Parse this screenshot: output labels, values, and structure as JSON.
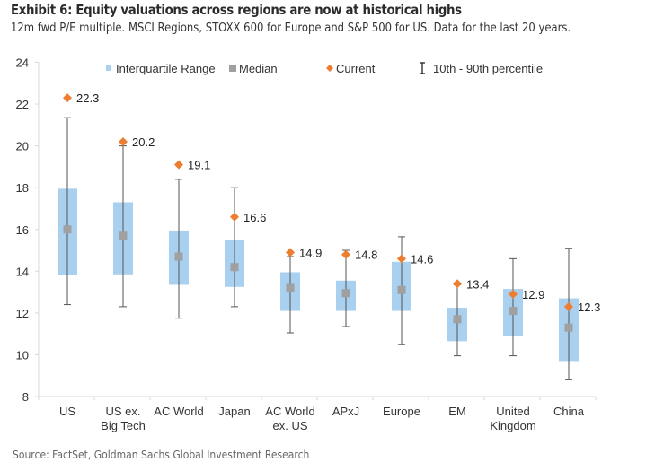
{
  "header": {
    "title": "Exhibit 6: Equity valuations across regions are now at historical highs",
    "subtitle": "12m fwd P/E multiple. MSCI Regions, STOXX 600 for Europe and S&P 500 for US. Data for the last 20 years."
  },
  "footer": {
    "source": "Source: FactSet, Goldman Sachs Global Investment Research"
  },
  "colors": {
    "iqr_box": "#a9d0ef",
    "median": "#a0a0a0",
    "current": "#ed7d31",
    "whisker": "#555555",
    "axis": "#d9d9d9"
  },
  "chart_data": {
    "type": "box",
    "title": "Exhibit 6: Equity valuations across regions are now at historical highs",
    "subtitle": "12m fwd P/E multiple. MSCI Regions, STOXX 600 for Europe and S&P 500 for US. Data for the last 20 years.",
    "xlabel": "",
    "ylabel": "",
    "ylim": [
      8,
      24
    ],
    "yticks": [
      8,
      10,
      12,
      14,
      16,
      18,
      20,
      22,
      24
    ],
    "grid": false,
    "legend_position": "top",
    "legend": [
      {
        "key": "iqr",
        "label": "Interquartile Range"
      },
      {
        "key": "median",
        "label": "Median"
      },
      {
        "key": "current",
        "label": "Current"
      },
      {
        "key": "range",
        "label": "10th - 90th percentile"
      }
    ],
    "categories": [
      [
        "US"
      ],
      [
        "US ex.",
        "Big Tech"
      ],
      [
        "AC World"
      ],
      [
        "Japan"
      ],
      [
        "AC World",
        "ex. US"
      ],
      [
        "APxJ"
      ],
      [
        "Europe"
      ],
      [
        "EM"
      ],
      [
        "United",
        "Kingdom"
      ],
      [
        "China"
      ]
    ],
    "series": [
      {
        "name": "10th percentile",
        "values": [
          12.4,
          12.3,
          11.75,
          12.3,
          11.05,
          11.35,
          10.5,
          9.95,
          9.95,
          8.8
        ]
      },
      {
        "name": "25th percentile",
        "values": [
          13.8,
          13.85,
          13.35,
          13.25,
          12.1,
          12.1,
          12.1,
          10.65,
          10.9,
          9.7
        ]
      },
      {
        "name": "Median",
        "values": [
          16.0,
          15.7,
          14.7,
          14.2,
          13.2,
          12.95,
          13.1,
          11.7,
          12.1,
          11.3
        ]
      },
      {
        "name": "75th percentile",
        "values": [
          17.95,
          17.3,
          15.95,
          15.5,
          13.95,
          13.55,
          14.45,
          12.25,
          13.15,
          12.7
        ]
      },
      {
        "name": "90th percentile",
        "values": [
          21.35,
          20.0,
          18.4,
          18.0,
          14.7,
          15.0,
          15.65,
          13.35,
          14.6,
          15.1
        ]
      },
      {
        "name": "Current",
        "values": [
          22.3,
          20.2,
          19.1,
          16.6,
          14.9,
          14.8,
          14.6,
          13.4,
          12.9,
          12.3
        ]
      }
    ],
    "current_labels": [
      "22.3",
      "20.2",
      "19.1",
      "16.6",
      "14.9",
      "14.8",
      "14.6",
      "13.4",
      "12.9",
      "12.3"
    ]
  }
}
